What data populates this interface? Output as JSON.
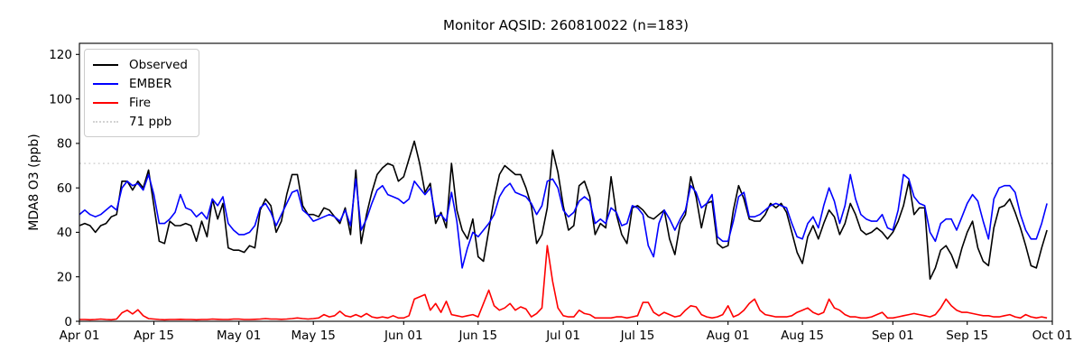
{
  "chart_data": {
    "type": "line",
    "title": "Monitor AQSID: 260810022 (n=183)",
    "xlabel": "",
    "ylabel": "MDA8 O3 (ppb)",
    "n_points": 183,
    "x_start_date": "Apr 01",
    "x_end_date": "Oct 01",
    "ylim": [
      0,
      125
    ],
    "yticks": [
      0,
      20,
      40,
      60,
      80,
      100,
      120
    ],
    "x_tick_labels": [
      "Apr 01",
      "Apr 15",
      "May 01",
      "May 15",
      "Jun 01",
      "Jun 15",
      "Jul 01",
      "Jul 15",
      "Aug 01",
      "Aug 15",
      "Sep 01",
      "Sep 15",
      "Oct 01"
    ],
    "x_tick_days": [
      0,
      14,
      30,
      44,
      61,
      75,
      91,
      105,
      122,
      136,
      153,
      167,
      183
    ],
    "x_range_days": 183,
    "grid": false,
    "legend_position": "upper left",
    "threshold": {
      "value": 71,
      "label": "71 ppb",
      "color": "#d3d3d3",
      "style": "dotted"
    },
    "series": [
      {
        "name": "Observed",
        "color": "#000000",
        "values": [
          43,
          44,
          43,
          40,
          43,
          44,
          47,
          48,
          63,
          63,
          59,
          63,
          60,
          68,
          52,
          36,
          35,
          45,
          43,
          43,
          44,
          43,
          36,
          45,
          38,
          55,
          46,
          53,
          33,
          32,
          32,
          31,
          34,
          33,
          50,
          55,
          52,
          40,
          45,
          57,
          66,
          66,
          52,
          48,
          48,
          47,
          51,
          50,
          47,
          44,
          51,
          39,
          68,
          35,
          48,
          58,
          66,
          69,
          71,
          70,
          63,
          65,
          73,
          81,
          71,
          58,
          62,
          44,
          49,
          42,
          71,
          50,
          41,
          37,
          46,
          29,
          27,
          41,
          55,
          66,
          70,
          68,
          66,
          66,
          60,
          52,
          35,
          39,
          51,
          77,
          67,
          52,
          41,
          43,
          61,
          63,
          56,
          39,
          44,
          42,
          65,
          48,
          39,
          35,
          51,
          52,
          50,
          47,
          46,
          48,
          50,
          37,
          30,
          44,
          48,
          65,
          56,
          42,
          53,
          54,
          35,
          33,
          34,
          50,
          61,
          55,
          46,
          45,
          45,
          48,
          53,
          51,
          53,
          49,
          40,
          31,
          26,
          38,
          43,
          37,
          44,
          50,
          47,
          39,
          44,
          53,
          48,
          41,
          39,
          40,
          42,
          40,
          37,
          40,
          45,
          52,
          63,
          48,
          51,
          51,
          19,
          24,
          32,
          34,
          30,
          24,
          33,
          40,
          45,
          33,
          27,
          25,
          42,
          51,
          52,
          55,
          49,
          42,
          34,
          25,
          24,
          33,
          41
        ]
      },
      {
        "name": "EMBER",
        "color": "#0000ff",
        "values": [
          48,
          50,
          48,
          47,
          48,
          50,
          52,
          50,
          60,
          63,
          61,
          62,
          59,
          66,
          57,
          44,
          44,
          46,
          49,
          57,
          51,
          50,
          47,
          49,
          46,
          55,
          52,
          56,
          44,
          41,
          39,
          39,
          40,
          43,
          51,
          53,
          49,
          43,
          48,
          53,
          58,
          59,
          50,
          48,
          45,
          46,
          47,
          48,
          47,
          45,
          50,
          43,
          64,
          41,
          46,
          53,
          59,
          61,
          57,
          56,
          55,
          53,
          55,
          63,
          60,
          57,
          60,
          47,
          48,
          45,
          58,
          45,
          24,
          33,
          40,
          38,
          41,
          44,
          48,
          56,
          60,
          62,
          58,
          57,
          56,
          53,
          48,
          52,
          63,
          64,
          60,
          50,
          47,
          49,
          54,
          56,
          54,
          44,
          46,
          44,
          51,
          49,
          43,
          44,
          52,
          51,
          48,
          34,
          29,
          44,
          50,
          46,
          41,
          46,
          50,
          61,
          58,
          51,
          53,
          57,
          38,
          36,
          36,
          45,
          56,
          58,
          47,
          47,
          48,
          50,
          52,
          53,
          52,
          51,
          44,
          38,
          37,
          44,
          47,
          42,
          52,
          60,
          54,
          44,
          52,
          66,
          55,
          48,
          46,
          45,
          45,
          48,
          42,
          41,
          50,
          66,
          64,
          56,
          53,
          52,
          40,
          36,
          44,
          46,
          46,
          41,
          47,
          53,
          57,
          54,
          45,
          37,
          55,
          60,
          61,
          61,
          58,
          48,
          41,
          37,
          37,
          44,
          53
        ]
      },
      {
        "name": "Fire",
        "color": "#ff0000",
        "values": [
          0.8,
          0.8,
          0.7,
          0.8,
          1,
          0.8,
          0.7,
          1,
          3.8,
          5,
          3.3,
          5.2,
          2.5,
          1.2,
          1,
          0.8,
          0.7,
          0.8,
          0.8,
          0.9,
          0.8,
          0.8,
          0.7,
          0.8,
          0.8,
          1,
          0.9,
          0.8,
          0.8,
          1,
          1,
          0.8,
          0.8,
          0.9,
          1,
          1.2,
          1,
          1,
          0.9,
          1,
          1.2,
          1.5,
          1.2,
          1,
          1.2,
          1.5,
          3,
          2,
          2.5,
          4.5,
          2.5,
          2,
          3,
          2,
          3.5,
          2,
          1.5,
          2,
          1.5,
          2.5,
          1.5,
          1.5,
          2.5,
          10,
          11,
          12,
          5,
          8,
          4,
          9,
          3,
          2.5,
          2,
          2.5,
          3,
          2,
          8,
          14,
          7,
          5,
          6,
          8,
          5,
          6.5,
          5.5,
          2,
          3.5,
          6,
          34,
          18,
          6,
          2.5,
          2,
          2,
          5,
          3.5,
          3,
          1.5,
          1.5,
          1.5,
          1.5,
          2,
          2,
          1.5,
          2,
          2.5,
          8.5,
          8.5,
          4,
          2.5,
          4,
          3,
          2,
          2.5,
          5,
          7,
          6.5,
          3,
          2,
          1.5,
          2,
          3,
          7,
          2,
          3,
          5,
          8,
          10,
          5,
          3,
          2.5,
          2,
          2,
          2,
          2.5,
          4,
          5,
          6,
          4,
          3,
          4,
          10,
          6,
          5,
          3,
          2,
          2,
          1.5,
          1.5,
          2,
          3,
          4,
          1.5,
          1.5,
          2,
          2.5,
          3,
          3.5,
          3,
          2.5,
          2,
          3,
          6,
          10,
          7,
          5,
          4,
          4,
          3.5,
          3,
          2.5,
          2.5,
          2,
          2,
          2.5,
          3,
          2,
          1.5,
          3,
          2,
          1.5,
          2,
          1.5
        ]
      }
    ]
  }
}
